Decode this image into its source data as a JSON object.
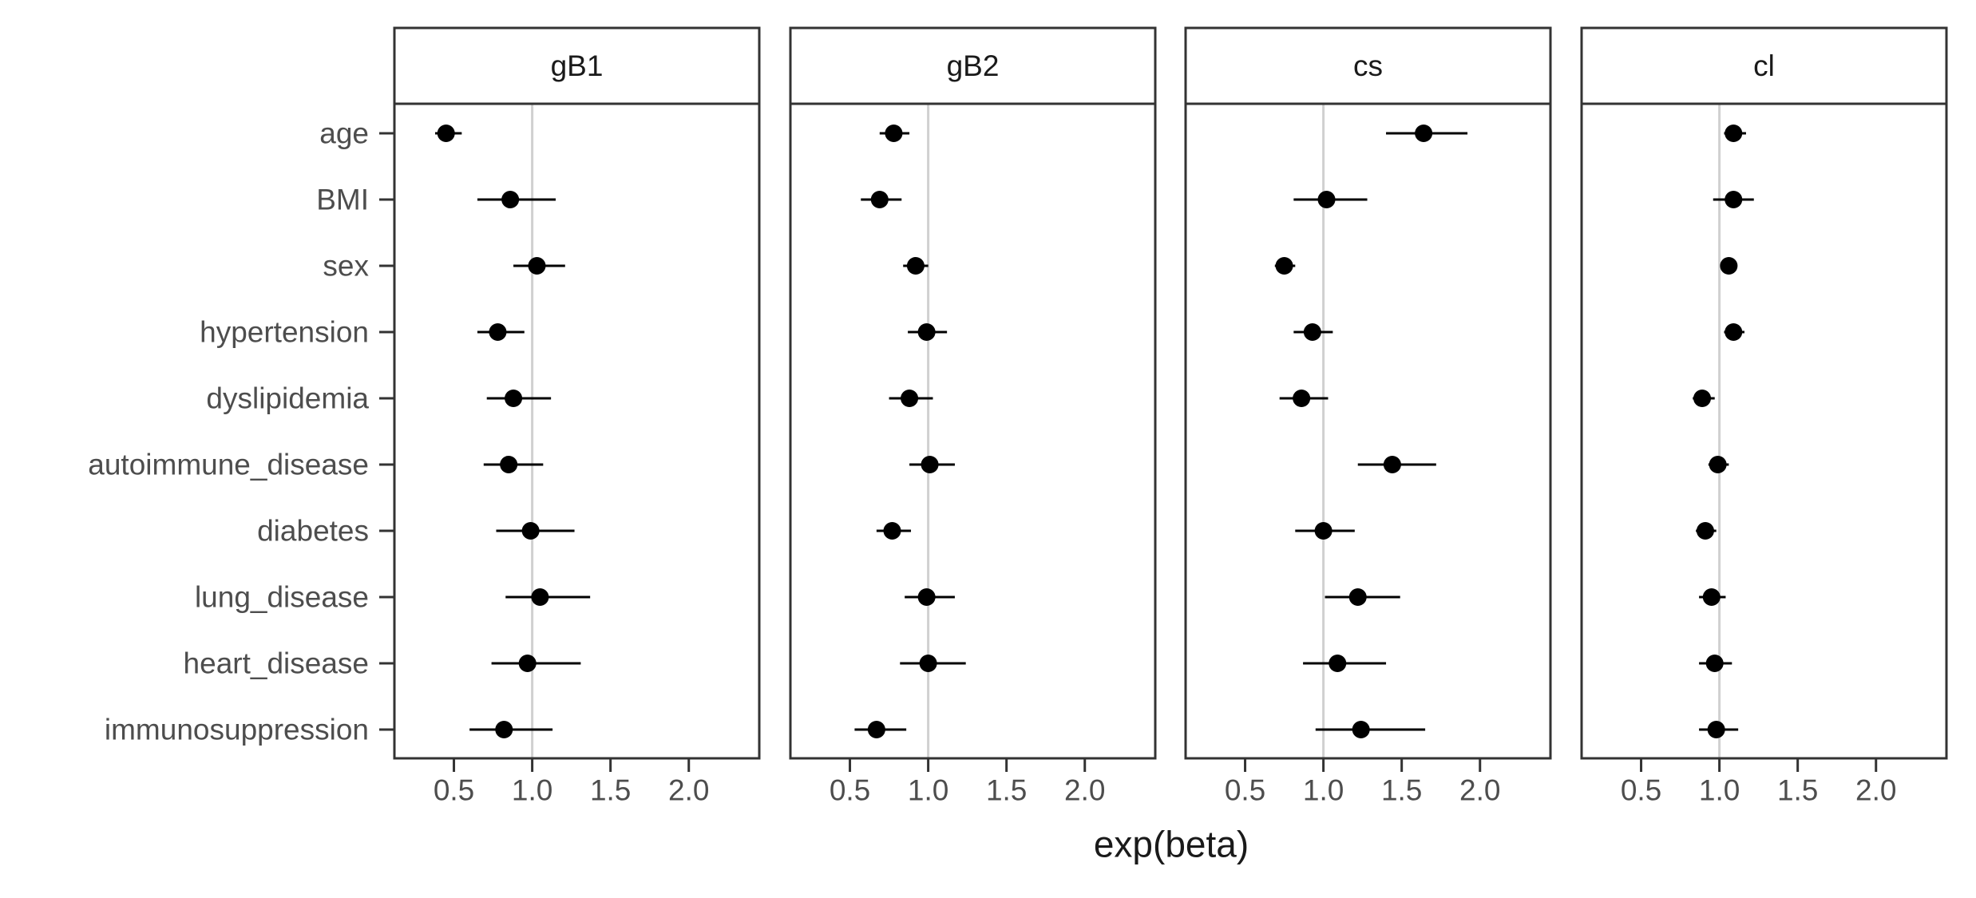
{
  "chart_data": {
    "type": "scatter",
    "subtype": "forest-plot-faceted",
    "xlabel": "exp(beta)",
    "x_ticks": [
      0.5,
      1.0,
      1.5,
      2.0
    ],
    "x_tick_labels": [
      "0.5",
      "1.0",
      "1.5",
      "2.0"
    ],
    "xlim": [
      0.12,
      2.45
    ],
    "reference_x": 1.0,
    "grid": false,
    "categories": [
      "age",
      "BMI",
      "sex",
      "hypertension",
      "dyslipidemia",
      "autoimmune_disease",
      "diabetes",
      "lung_disease",
      "heart_disease",
      "immunosuppression"
    ],
    "panels": [
      {
        "name": "gB1",
        "estimate": [
          0.45,
          0.86,
          1.03,
          0.78,
          0.88,
          0.85,
          0.99,
          1.05,
          0.97,
          0.82
        ],
        "lower": [
          0.38,
          0.65,
          0.88,
          0.65,
          0.71,
          0.69,
          0.77,
          0.83,
          0.74,
          0.6
        ],
        "upper": [
          0.55,
          1.15,
          1.21,
          0.95,
          1.12,
          1.07,
          1.27,
          1.37,
          1.31,
          1.13
        ]
      },
      {
        "name": "gB2",
        "estimate": [
          0.78,
          0.69,
          0.92,
          0.99,
          0.88,
          1.01,
          0.77,
          0.99,
          1.0,
          0.67
        ],
        "lower": [
          0.69,
          0.57,
          0.84,
          0.87,
          0.75,
          0.88,
          0.67,
          0.85,
          0.82,
          0.53
        ],
        "upper": [
          0.88,
          0.83,
          1.0,
          1.12,
          1.03,
          1.17,
          0.89,
          1.17,
          1.24,
          0.86
        ]
      },
      {
        "name": "cs",
        "estimate": [
          1.64,
          1.02,
          0.75,
          0.93,
          0.86,
          1.44,
          1.0,
          1.22,
          1.09,
          1.24
        ],
        "lower": [
          1.4,
          0.81,
          0.69,
          0.81,
          0.72,
          1.22,
          0.82,
          1.01,
          0.87,
          0.95
        ],
        "upper": [
          1.92,
          1.28,
          0.82,
          1.06,
          1.03,
          1.72,
          1.2,
          1.49,
          1.4,
          1.65
        ]
      },
      {
        "name": "cl",
        "estimate": [
          1.09,
          1.09,
          1.06,
          1.09,
          0.89,
          0.99,
          0.91,
          0.95,
          0.97,
          0.98
        ],
        "lower": [
          1.03,
          0.96,
          1.03,
          1.03,
          0.83,
          0.93,
          0.85,
          0.87,
          0.87,
          0.87
        ],
        "upper": [
          1.17,
          1.22,
          1.09,
          1.16,
          0.97,
          1.06,
          0.98,
          1.04,
          1.08,
          1.12
        ]
      }
    ]
  }
}
